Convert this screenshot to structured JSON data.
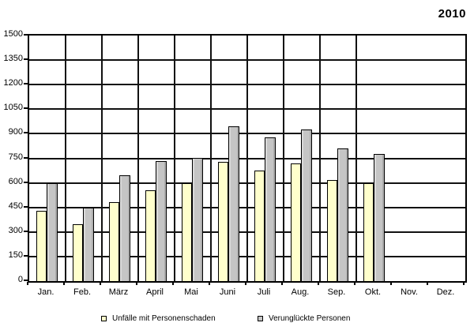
{
  "title": "2010",
  "chart_data": {
    "type": "bar",
    "categories": [
      "Jan.",
      "Feb.",
      "März",
      "April",
      "Mai",
      "Juni",
      "Juli",
      "Aug.",
      "Sep.",
      "Okt.",
      "Nov.",
      "Dez."
    ],
    "series": [
      {
        "name": "Unfälle mit Personenschaden",
        "color": "#FFFFCC",
        "values": [
          430,
          345,
          480,
          555,
          600,
          730,
          675,
          720,
          615,
          600,
          null,
          null
        ]
      },
      {
        "name": "Verunglückte Personen",
        "color": "#C5C5C5",
        "values": [
          600,
          450,
          645,
          735,
          750,
          945,
          880,
          925,
          810,
          775,
          null,
          null
        ]
      }
    ],
    "title": "2010",
    "xlabel": "",
    "ylabel": "",
    "ylim": [
      0,
      1500
    ],
    "ytick_step": 150,
    "grid": true,
    "legend_position": "bottom"
  }
}
